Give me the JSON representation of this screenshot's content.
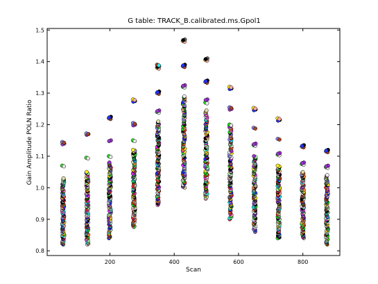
{
  "chart_data": {
    "type": "scatter",
    "title": "G table: TRACK_B.calibrated.ms.Gpol1",
    "xlabel": "Scan",
    "ylabel": "Gain Amplitude POLN Ratio",
    "xlim": [
      5,
      915
    ],
    "ylim": [
      0.785,
      1.505
    ],
    "xticks": [
      200,
      400,
      600,
      800
    ],
    "yticks": [
      0.8,
      0.9,
      1.0,
      1.1,
      1.2,
      1.3,
      1.4,
      1.5
    ],
    "grid": false,
    "legend": "none",
    "scan_groups": [
      {
        "x": 55,
        "min": 0.82,
        "max": 1.03,
        "outliers": [
          1.07,
          1.14,
          1.145
        ]
      },
      {
        "x": 130,
        "min": 0.82,
        "max": 1.05,
        "outliers": [
          1.095,
          1.17,
          1.172
        ]
      },
      {
        "x": 200,
        "min": 0.84,
        "max": 1.08,
        "outliers": [
          1.1,
          1.15,
          1.22,
          1.225
        ]
      },
      {
        "x": 275,
        "min": 0.875,
        "max": 1.12,
        "outliers": [
          1.15,
          1.2,
          1.205,
          1.275,
          1.28
        ]
      },
      {
        "x": 350,
        "min": 0.945,
        "max": 1.21,
        "outliers": [
          1.24,
          1.245,
          1.3,
          1.305,
          1.38,
          1.385,
          1.39
        ]
      },
      {
        "x": 430,
        "min": 1.0,
        "max": 1.29,
        "outliers": [
          1.32,
          1.325,
          1.385,
          1.39,
          1.465,
          1.47
        ]
      },
      {
        "x": 500,
        "min": 0.965,
        "max": 1.245,
        "outliers": [
          1.27,
          1.28,
          1.335,
          1.34,
          1.405,
          1.41
        ]
      },
      {
        "x": 575,
        "min": 0.9,
        "max": 1.2,
        "outliers": [
          1.2,
          1.25,
          1.255,
          1.315,
          1.32
        ]
      },
      {
        "x": 650,
        "min": 0.86,
        "max": 1.1,
        "outliers": [
          1.135,
          1.14,
          1.19,
          1.248,
          1.253
        ]
      },
      {
        "x": 725,
        "min": 0.84,
        "max": 1.07,
        "outliers": [
          1.105,
          1.11,
          1.155,
          1.215,
          1.22
        ]
      },
      {
        "x": 800,
        "min": 0.84,
        "max": 1.05,
        "outliers": [
          1.075,
          1.08,
          1.13,
          1.135
        ]
      },
      {
        "x": 875,
        "min": 0.82,
        "max": 1.04,
        "outliers": [
          1.065,
          1.07,
          1.115,
          1.12
        ]
      }
    ],
    "point_colors": [
      "#000000",
      "#e8e8e8",
      "#ff2222",
      "#22ee22",
      "#2233ff",
      "#ffee22",
      "#ff33ff",
      "#22eeee",
      "#9933cc",
      "#ff8833",
      "#666666",
      "#ffaaaa",
      "#aaffaa",
      "#8888ff",
      "#ddddaa",
      "#aa4422",
      "#116611",
      "#eeeeee"
    ]
  }
}
